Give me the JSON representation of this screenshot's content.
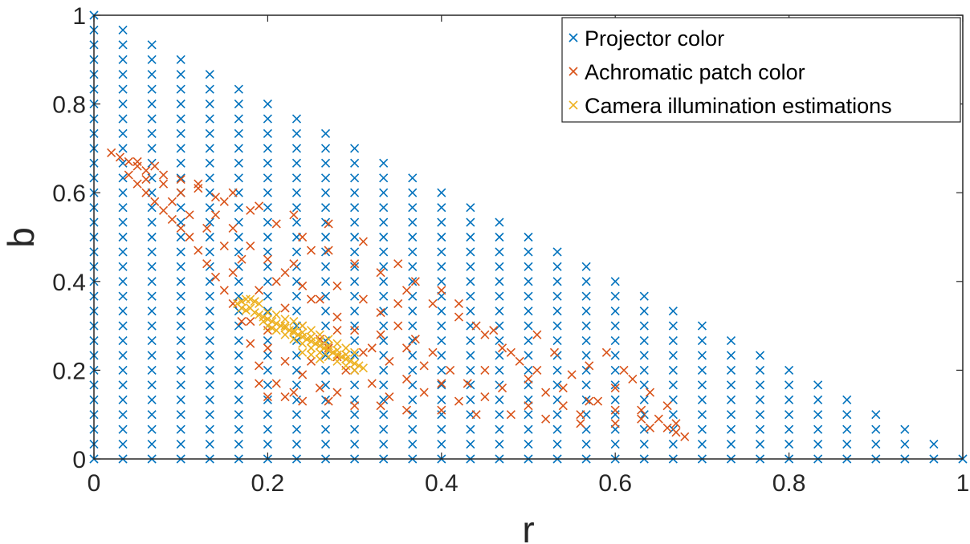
{
  "chart_data": {
    "type": "scatter",
    "title": "",
    "xlabel": "r",
    "ylabel": "b",
    "xlim": [
      0,
      1
    ],
    "ylim": [
      0,
      1
    ],
    "x_ticks": [
      "0",
      "0.2",
      "0.4",
      "0.6",
      "0.8",
      "1"
    ],
    "y_ticks": [
      "0",
      "0.2",
      "0.4",
      "0.6",
      "0.8",
      "1"
    ],
    "grid": false,
    "legend_position": "top-right",
    "marker": "x",
    "series": [
      {
        "name": "Projector color",
        "color": "#0072BD",
        "description_of_points": "regular grid of (r, b) with r and b in steps of 1/30, r + b <= 1",
        "step": 0.0333,
        "constraint": "r + b <= 1"
      },
      {
        "name": "Achromatic patch color",
        "color": "#D95319",
        "points": [
          [
            0.02,
            0.69
          ],
          [
            0.03,
            0.68
          ],
          [
            0.04,
            0.67
          ],
          [
            0.05,
            0.66
          ],
          [
            0.06,
            0.65
          ],
          [
            0.05,
            0.67
          ],
          [
            0.07,
            0.66
          ],
          [
            0.08,
            0.64
          ],
          [
            0.1,
            0.63
          ],
          [
            0.12,
            0.62
          ],
          [
            0.04,
            0.64
          ],
          [
            0.05,
            0.62
          ],
          [
            0.06,
            0.6
          ],
          [
            0.07,
            0.58
          ],
          [
            0.08,
            0.56
          ],
          [
            0.09,
            0.54
          ],
          [
            0.1,
            0.52
          ],
          [
            0.11,
            0.5
          ],
          [
            0.12,
            0.47
          ],
          [
            0.13,
            0.44
          ],
          [
            0.14,
            0.41
          ],
          [
            0.15,
            0.38
          ],
          [
            0.16,
            0.35
          ],
          [
            0.17,
            0.31
          ],
          [
            0.18,
            0.26
          ],
          [
            0.19,
            0.21
          ],
          [
            0.19,
            0.17
          ],
          [
            0.2,
            0.14
          ],
          [
            0.22,
            0.14
          ],
          [
            0.24,
            0.13
          ],
          [
            0.27,
            0.13
          ],
          [
            0.3,
            0.12
          ],
          [
            0.33,
            0.12
          ],
          [
            0.36,
            0.11
          ],
          [
            0.4,
            0.11
          ],
          [
            0.44,
            0.1
          ],
          [
            0.48,
            0.1
          ],
          [
            0.52,
            0.09
          ],
          [
            0.56,
            0.08
          ],
          [
            0.6,
            0.08
          ],
          [
            0.64,
            0.07
          ],
          [
            0.67,
            0.06
          ],
          [
            0.68,
            0.05
          ],
          [
            0.66,
            0.07
          ],
          [
            0.63,
            0.09
          ],
          [
            0.6,
            0.11
          ],
          [
            0.57,
            0.13
          ],
          [
            0.54,
            0.16
          ],
          [
            0.51,
            0.2
          ],
          [
            0.48,
            0.24
          ],
          [
            0.45,
            0.28
          ],
          [
            0.42,
            0.32
          ],
          [
            0.39,
            0.35
          ],
          [
            0.36,
            0.38
          ],
          [
            0.33,
            0.42
          ],
          [
            0.3,
            0.44
          ],
          [
            0.27,
            0.47
          ],
          [
            0.24,
            0.5
          ],
          [
            0.21,
            0.53
          ],
          [
            0.18,
            0.56
          ],
          [
            0.15,
            0.58
          ],
          [
            0.12,
            0.61
          ],
          [
            0.14,
            0.55
          ],
          [
            0.16,
            0.52
          ],
          [
            0.18,
            0.48
          ],
          [
            0.2,
            0.45
          ],
          [
            0.22,
            0.42
          ],
          [
            0.24,
            0.39
          ],
          [
            0.26,
            0.36
          ],
          [
            0.28,
            0.32
          ],
          [
            0.3,
            0.29
          ],
          [
            0.32,
            0.25
          ],
          [
            0.34,
            0.22
          ],
          [
            0.36,
            0.18
          ],
          [
            0.38,
            0.15
          ],
          [
            0.22,
            0.34
          ],
          [
            0.24,
            0.3
          ],
          [
            0.26,
            0.27
          ],
          [
            0.28,
            0.23
          ],
          [
            0.3,
            0.2
          ],
          [
            0.32,
            0.17
          ],
          [
            0.34,
            0.14
          ],
          [
            0.2,
            0.25
          ],
          [
            0.22,
            0.22
          ],
          [
            0.24,
            0.19
          ],
          [
            0.26,
            0.16
          ],
          [
            0.28,
            0.15
          ],
          [
            0.25,
            0.36
          ],
          [
            0.28,
            0.39
          ],
          [
            0.31,
            0.36
          ],
          [
            0.33,
            0.33
          ],
          [
            0.35,
            0.3
          ],
          [
            0.37,
            0.27
          ],
          [
            0.39,
            0.24
          ],
          [
            0.41,
            0.2
          ],
          [
            0.43,
            0.17
          ],
          [
            0.45,
            0.14
          ],
          [
            0.47,
            0.25
          ],
          [
            0.49,
            0.22
          ],
          [
            0.5,
            0.18
          ],
          [
            0.52,
            0.15
          ],
          [
            0.54,
            0.12
          ],
          [
            0.56,
            0.1
          ],
          [
            0.58,
            0.13
          ],
          [
            0.6,
            0.16
          ],
          [
            0.62,
            0.18
          ],
          [
            0.64,
            0.15
          ],
          [
            0.66,
            0.12
          ],
          [
            0.44,
            0.3
          ],
          [
            0.46,
            0.29
          ],
          [
            0.4,
            0.38
          ],
          [
            0.42,
            0.35
          ],
          [
            0.35,
            0.44
          ],
          [
            0.37,
            0.4
          ],
          [
            0.31,
            0.49
          ],
          [
            0.27,
            0.53
          ],
          [
            0.23,
            0.55
          ],
          [
            0.19,
            0.57
          ],
          [
            0.16,
            0.6
          ],
          [
            0.17,
            0.45
          ],
          [
            0.15,
            0.48
          ],
          [
            0.13,
            0.52
          ],
          [
            0.11,
            0.55
          ],
          [
            0.09,
            0.58
          ],
          [
            0.16,
            0.42
          ],
          [
            0.19,
            0.38
          ],
          [
            0.21,
            0.4
          ],
          [
            0.23,
            0.44
          ],
          [
            0.25,
            0.47
          ],
          [
            0.28,
            0.29
          ],
          [
            0.36,
            0.25
          ],
          [
            0.38,
            0.21
          ],
          [
            0.4,
            0.17
          ],
          [
            0.42,
            0.13
          ],
          [
            0.5,
            0.12
          ],
          [
            0.55,
            0.19
          ],
          [
            0.57,
            0.21
          ],
          [
            0.59,
            0.24
          ],
          [
            0.61,
            0.2
          ],
          [
            0.63,
            0.11
          ],
          [
            0.65,
            0.09
          ],
          [
            0.67,
            0.08
          ],
          [
            0.45,
            0.2
          ],
          [
            0.47,
            0.16
          ],
          [
            0.53,
            0.24
          ],
          [
            0.51,
            0.28
          ],
          [
            0.35,
            0.35
          ],
          [
            0.33,
            0.28
          ],
          [
            0.31,
            0.24
          ],
          [
            0.29,
            0.2
          ],
          [
            0.21,
            0.17
          ],
          [
            0.23,
            0.15
          ],
          [
            0.25,
            0.22
          ],
          [
            0.27,
            0.25
          ],
          [
            0.18,
            0.31
          ],
          [
            0.2,
            0.29
          ],
          [
            0.1,
            0.6
          ],
          [
            0.08,
            0.62
          ],
          [
            0.06,
            0.63
          ],
          [
            0.14,
            0.59
          ]
        ]
      },
      {
        "name": "Camera illumination estimations",
        "color": "#EDB120",
        "points": [
          [
            0.165,
            0.35
          ],
          [
            0.17,
            0.355
          ],
          [
            0.175,
            0.36
          ],
          [
            0.18,
            0.36
          ],
          [
            0.185,
            0.355
          ],
          [
            0.19,
            0.35
          ],
          [
            0.17,
            0.34
          ],
          [
            0.175,
            0.335
          ],
          [
            0.18,
            0.34
          ],
          [
            0.185,
            0.33
          ],
          [
            0.19,
            0.325
          ],
          [
            0.195,
            0.32
          ],
          [
            0.2,
            0.315
          ],
          [
            0.205,
            0.31
          ],
          [
            0.21,
            0.305
          ],
          [
            0.215,
            0.3
          ],
          [
            0.22,
            0.295
          ],
          [
            0.225,
            0.29
          ],
          [
            0.23,
            0.285
          ],
          [
            0.235,
            0.28
          ],
          [
            0.24,
            0.275
          ],
          [
            0.245,
            0.27
          ],
          [
            0.25,
            0.265
          ],
          [
            0.255,
            0.26
          ],
          [
            0.26,
            0.255
          ],
          [
            0.265,
            0.25
          ],
          [
            0.27,
            0.245
          ],
          [
            0.275,
            0.24
          ],
          [
            0.28,
            0.235
          ],
          [
            0.285,
            0.23
          ],
          [
            0.29,
            0.225
          ],
          [
            0.295,
            0.22
          ],
          [
            0.3,
            0.215
          ],
          [
            0.305,
            0.21
          ],
          [
            0.31,
            0.205
          ],
          [
            0.2,
            0.33
          ],
          [
            0.21,
            0.325
          ],
          [
            0.22,
            0.315
          ],
          [
            0.23,
            0.31
          ],
          [
            0.24,
            0.3
          ],
          [
            0.25,
            0.29
          ],
          [
            0.26,
            0.28
          ],
          [
            0.27,
            0.27
          ],
          [
            0.28,
            0.26
          ],
          [
            0.29,
            0.25
          ],
          [
            0.3,
            0.24
          ],
          [
            0.22,
            0.3
          ],
          [
            0.23,
            0.29
          ],
          [
            0.24,
            0.285
          ],
          [
            0.25,
            0.275
          ],
          [
            0.26,
            0.265
          ],
          [
            0.27,
            0.255
          ],
          [
            0.28,
            0.245
          ],
          [
            0.29,
            0.235
          ],
          [
            0.21,
            0.29
          ],
          [
            0.22,
            0.28
          ],
          [
            0.23,
            0.27
          ],
          [
            0.24,
            0.26
          ],
          [
            0.25,
            0.25
          ],
          [
            0.26,
            0.24
          ],
          [
            0.27,
            0.23
          ],
          [
            0.28,
            0.22
          ],
          [
            0.29,
            0.21
          ],
          [
            0.3,
            0.2
          ],
          [
            0.195,
            0.31
          ],
          [
            0.2,
            0.3
          ],
          [
            0.205,
            0.295
          ],
          [
            0.24,
            0.24
          ],
          [
            0.25,
            0.235
          ],
          [
            0.26,
            0.225
          ]
        ]
      }
    ]
  }
}
